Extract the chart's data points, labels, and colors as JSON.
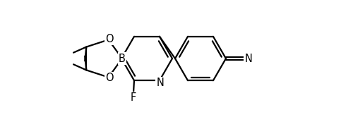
{
  "bg_color": "#ffffff",
  "line_color": "#000000",
  "line_width": 1.6,
  "font_size": 10.5,
  "figsize": [
    5.0,
    1.66
  ],
  "dpi": 100,
  "xlim": [
    0,
    5.0
  ],
  "ylim": [
    0,
    1.66
  ]
}
